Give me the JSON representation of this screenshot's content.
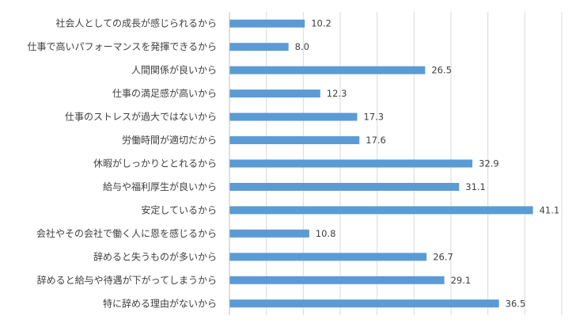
{
  "chart_data": {
    "type": "bar",
    "orientation": "horizontal",
    "categories": [
      "社会人としての成長が感じられるから",
      "仕事で高いパフォーマンスを発揮できるから",
      "人間関係が良いから",
      "仕事の満足感が高いから",
      "仕事のストレスが過大ではないから",
      "労働時間が適切だから",
      "休暇がしっかりととれるから",
      "給与や福利厚生が良いから",
      "安定しているから",
      "会社やその会社で働く人に恩を感じるから",
      "辞めると失うものが多いから",
      "辞めると給与や待遇が下がってしまうから",
      "特に辞める理由がないから"
    ],
    "values": [
      10.2,
      8.0,
      26.5,
      12.3,
      17.3,
      17.6,
      32.9,
      31.1,
      41.1,
      10.8,
      26.7,
      29.1,
      36.5
    ],
    "value_labels": [
      "10.2",
      "8.0",
      "26.5",
      "12.3",
      "17.3",
      "17.6",
      "32.9",
      "31.1",
      "41.1",
      "10.8",
      "26.7",
      "29.1",
      "36.5"
    ],
    "xlim": [
      0,
      45
    ],
    "grid": true,
    "title": "",
    "xlabel": "",
    "ylabel": "",
    "bar_color": "#5b9bd5",
    "grid_color": "#d9d9d9"
  }
}
